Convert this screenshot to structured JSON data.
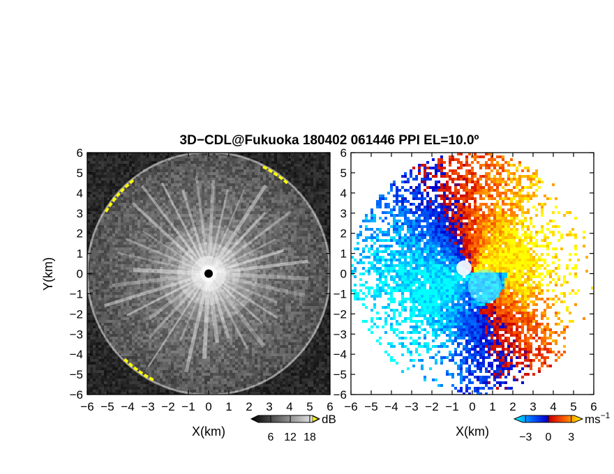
{
  "figure": {
    "title": "3D−CDL@Fukuoka 180402 061446 PPI EL=10.0º"
  },
  "chart_data": [
    {
      "type": "heatmap",
      "panel": "left",
      "quantity_shown": "reflectivity (radial ray pattern, grayscale)",
      "xlabel": "X(km)",
      "ylabel": "Y(km)",
      "xlim": [
        -6,
        6
      ],
      "ylim": [
        -6,
        6
      ],
      "x_ticks": [
        "−6",
        "−5",
        "−4",
        "−3",
        "−2",
        "−1",
        "0",
        "1",
        "2",
        "3",
        "4",
        "5",
        "6"
      ],
      "y_ticks": [
        "6",
        "5",
        "4",
        "3",
        "2",
        "1",
        "0",
        "−1",
        "−2",
        "−3",
        "−4",
        "−5",
        "−6"
      ],
      "colorbar": {
        "unit": "dB",
        "ticks": [
          6,
          12,
          18
        ],
        "tick_labels": [
          "6",
          "12",
          "18"
        ],
        "range": [
          0,
          21
        ],
        "colors": [
          "#000000",
          "#ffffff"
        ],
        "over_color": "#ffff00"
      },
      "range_limit_km": 6,
      "ray_count": 36,
      "center_marker": {
        "x": 0,
        "y": 0
      }
    },
    {
      "type": "heatmap",
      "panel": "right",
      "quantity_shown": "Doppler radial velocity",
      "xlabel": "X(km)",
      "xlim": [
        -6,
        6
      ],
      "ylim": [
        -6,
        6
      ],
      "x_ticks": [
        "−6",
        "−5",
        "−4",
        "−3",
        "−2",
        "−1",
        "0",
        "1",
        "2",
        "3",
        "4",
        "5",
        "6"
      ],
      "y_ticks": [
        "6",
        "5",
        "4",
        "3",
        "2",
        "1",
        "0",
        "−1",
        "−2",
        "−3",
        "−4",
        "−5",
        "−6"
      ],
      "colorbar": {
        "unit": "ms",
        "unit_exponent": "−1",
        "ticks": [
          -3,
          0,
          3
        ],
        "tick_labels": [
          "−3",
          "0",
          "3"
        ],
        "range": [
          -4.5,
          4.5
        ],
        "colors": [
          "#00ffff",
          "#0066ff",
          "#0000cc",
          "#cc0000",
          "#ff6600",
          "#ffff00"
        ]
      },
      "range_limit_km": 6
    }
  ]
}
